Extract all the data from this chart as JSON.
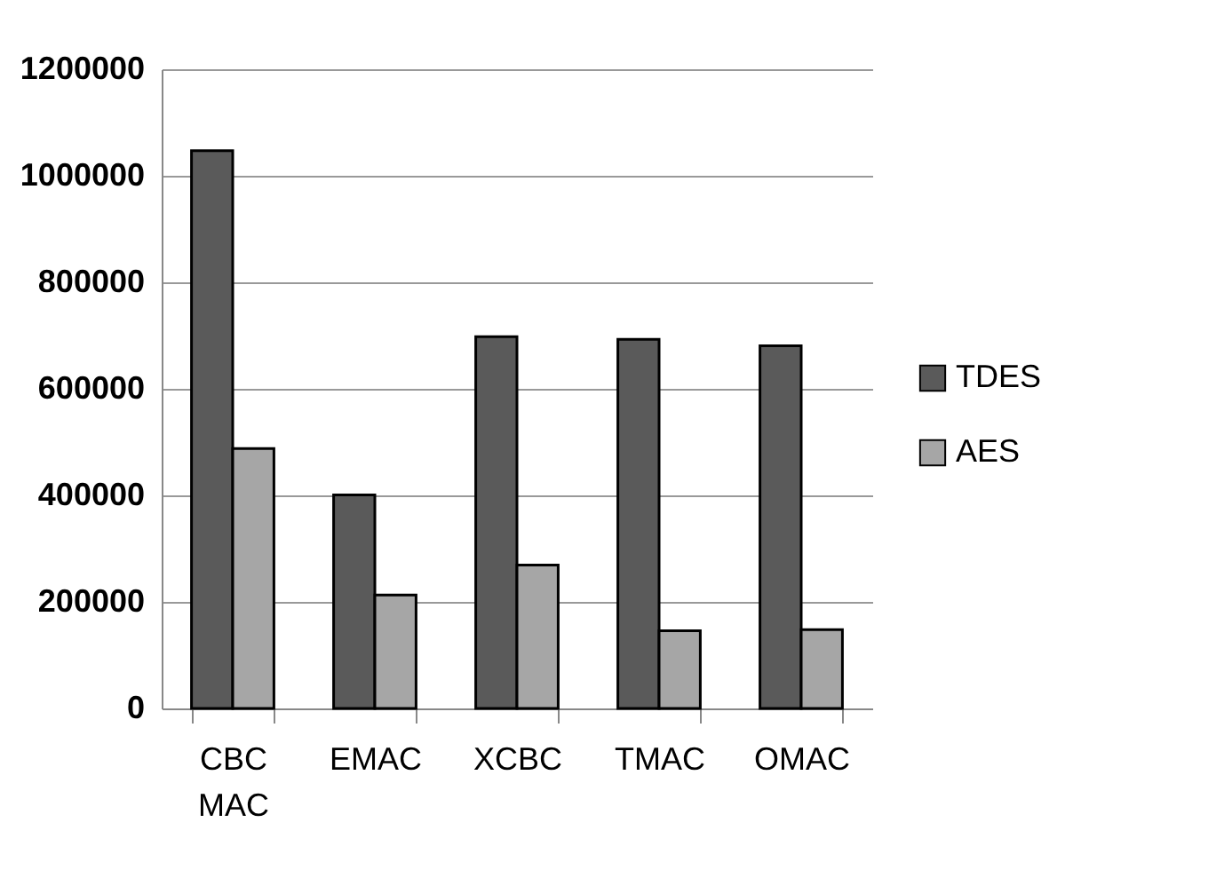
{
  "chart_data": {
    "type": "bar",
    "categories": [
      "CBC MAC",
      "EMAC",
      "XCBC",
      "TMAC",
      "OMAC"
    ],
    "series": [
      {
        "name": "TDES",
        "color": "#5a5a5a",
        "values": [
          1047000,
          401000,
          698000,
          693000,
          681000
        ]
      },
      {
        "name": "AES",
        "color": "#a6a6a6",
        "values": [
          488000,
          213000,
          269000,
          146000,
          148000
        ]
      }
    ],
    "ylim": [
      0,
      1200000
    ],
    "yticks": [
      0,
      200000,
      400000,
      600000,
      800000,
      1000000,
      1200000
    ],
    "grid": "y",
    "legend": "right"
  }
}
